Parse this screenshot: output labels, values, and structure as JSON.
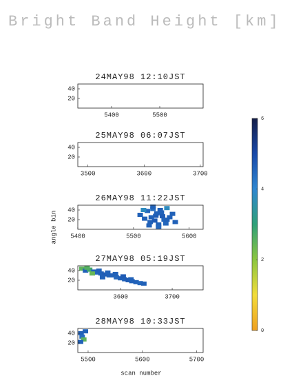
{
  "title": "Bright Band Height [km]",
  "xlabel": "scan number",
  "ylabel": "angle bin",
  "colorbar": {
    "clim": [
      0,
      6
    ],
    "ticks": [
      0,
      2,
      4,
      6
    ],
    "colormap": [
      "#f0a020",
      "#f2dc3a",
      "#8cc63f",
      "#2fa078",
      "#2f86d0",
      "#1848a8",
      "#141e48"
    ]
  },
  "chart_data": [
    {
      "type": "scatter",
      "title": "24MAY98 12:10JST",
      "xlim": [
        5330,
        5590
      ],
      "xticks": [
        5400,
        5500
      ],
      "ylim": [
        0,
        50
      ],
      "yticks": [
        20,
        40
      ],
      "x": [],
      "y": [],
      "values": []
    },
    {
      "type": "scatter",
      "title": "25MAY98 06:07JST",
      "xlim": [
        3482,
        3705
      ],
      "xticks": [
        3500,
        3600,
        3700
      ],
      "ylim": [
        0,
        50
      ],
      "yticks": [
        20,
        40
      ],
      "x": [],
      "y": [],
      "values": []
    },
    {
      "type": "scatter",
      "title": "26MAY98 11:22JST",
      "xlim": [
        5400,
        5625
      ],
      "xticks": [
        5400,
        5500,
        5600
      ],
      "ylim": [
        0,
        50
      ],
      "yticks": [
        20,
        40
      ],
      "x": [
        5512,
        5520,
        5525,
        5530,
        5535,
        5540,
        5545,
        5550,
        5555,
        5560,
        5565,
        5570,
        5528,
        5538,
        5548,
        5558,
        5532,
        5542,
        5552,
        5518,
        5575,
        5545,
        5535,
        5560
      ],
      "y": [
        30,
        22,
        38,
        15,
        42,
        28,
        10,
        35,
        20,
        44,
        25,
        32,
        8,
        18,
        40,
        12,
        25,
        33,
        27,
        40,
        15,
        5,
        47,
        20
      ],
      "values": [
        4.6,
        4.6,
        4.5,
        4.6,
        4.4,
        4.7,
        4.6,
        4.6,
        4.5,
        3.8,
        4.6,
        4.6,
        4.6,
        4.7,
        4.6,
        4.5,
        4.6,
        4.6,
        4.7,
        3.8,
        4.6,
        4.5,
        4.6,
        4.6
      ]
    },
    {
      "type": "scatter",
      "title": "27MAY98 05:19JST",
      "xlim": [
        3517,
        3760
      ],
      "xticks": [
        3600,
        3700
      ],
      "ylim": [
        0,
        50
      ],
      "yticks": [
        20,
        40
      ],
      "x": [
        3525,
        3532,
        3540,
        3548,
        3555,
        3562,
        3570,
        3578,
        3585,
        3592,
        3600,
        3608,
        3615,
        3622,
        3630,
        3638,
        3645,
        3535,
        3558,
        3575,
        3590,
        3605,
        3620,
        3545,
        3565
      ],
      "y": [
        44,
        40,
        42,
        38,
        36,
        34,
        32,
        30,
        30,
        26,
        24,
        22,
        20,
        18,
        16,
        14,
        13,
        46,
        40,
        36,
        33,
        28,
        22,
        34,
        26
      ],
      "values": [
        2.5,
        4.6,
        2.8,
        4.6,
        4.5,
        4.6,
        4.7,
        4.6,
        4.6,
        4.5,
        4.6,
        4.6,
        4.7,
        4.6,
        4.6,
        4.5,
        4.6,
        2.6,
        4.6,
        4.6,
        4.6,
        4.7,
        4.6,
        2.4,
        4.6
      ]
    },
    {
      "type": "scatter",
      "title": "28MAY98 10:33JST",
      "xlim": [
        5481,
        5712
      ],
      "xticks": [
        5500,
        5600,
        5700
      ],
      "ylim": [
        0,
        50
      ],
      "yticks": [
        20,
        40
      ],
      "x": [
        5487,
        5489,
        5492,
        5486,
        5495
      ],
      "y": [
        40,
        33,
        27,
        22,
        44
      ],
      "values": [
        4.6,
        4.4,
        2.5,
        4.6,
        4.6
      ]
    }
  ]
}
